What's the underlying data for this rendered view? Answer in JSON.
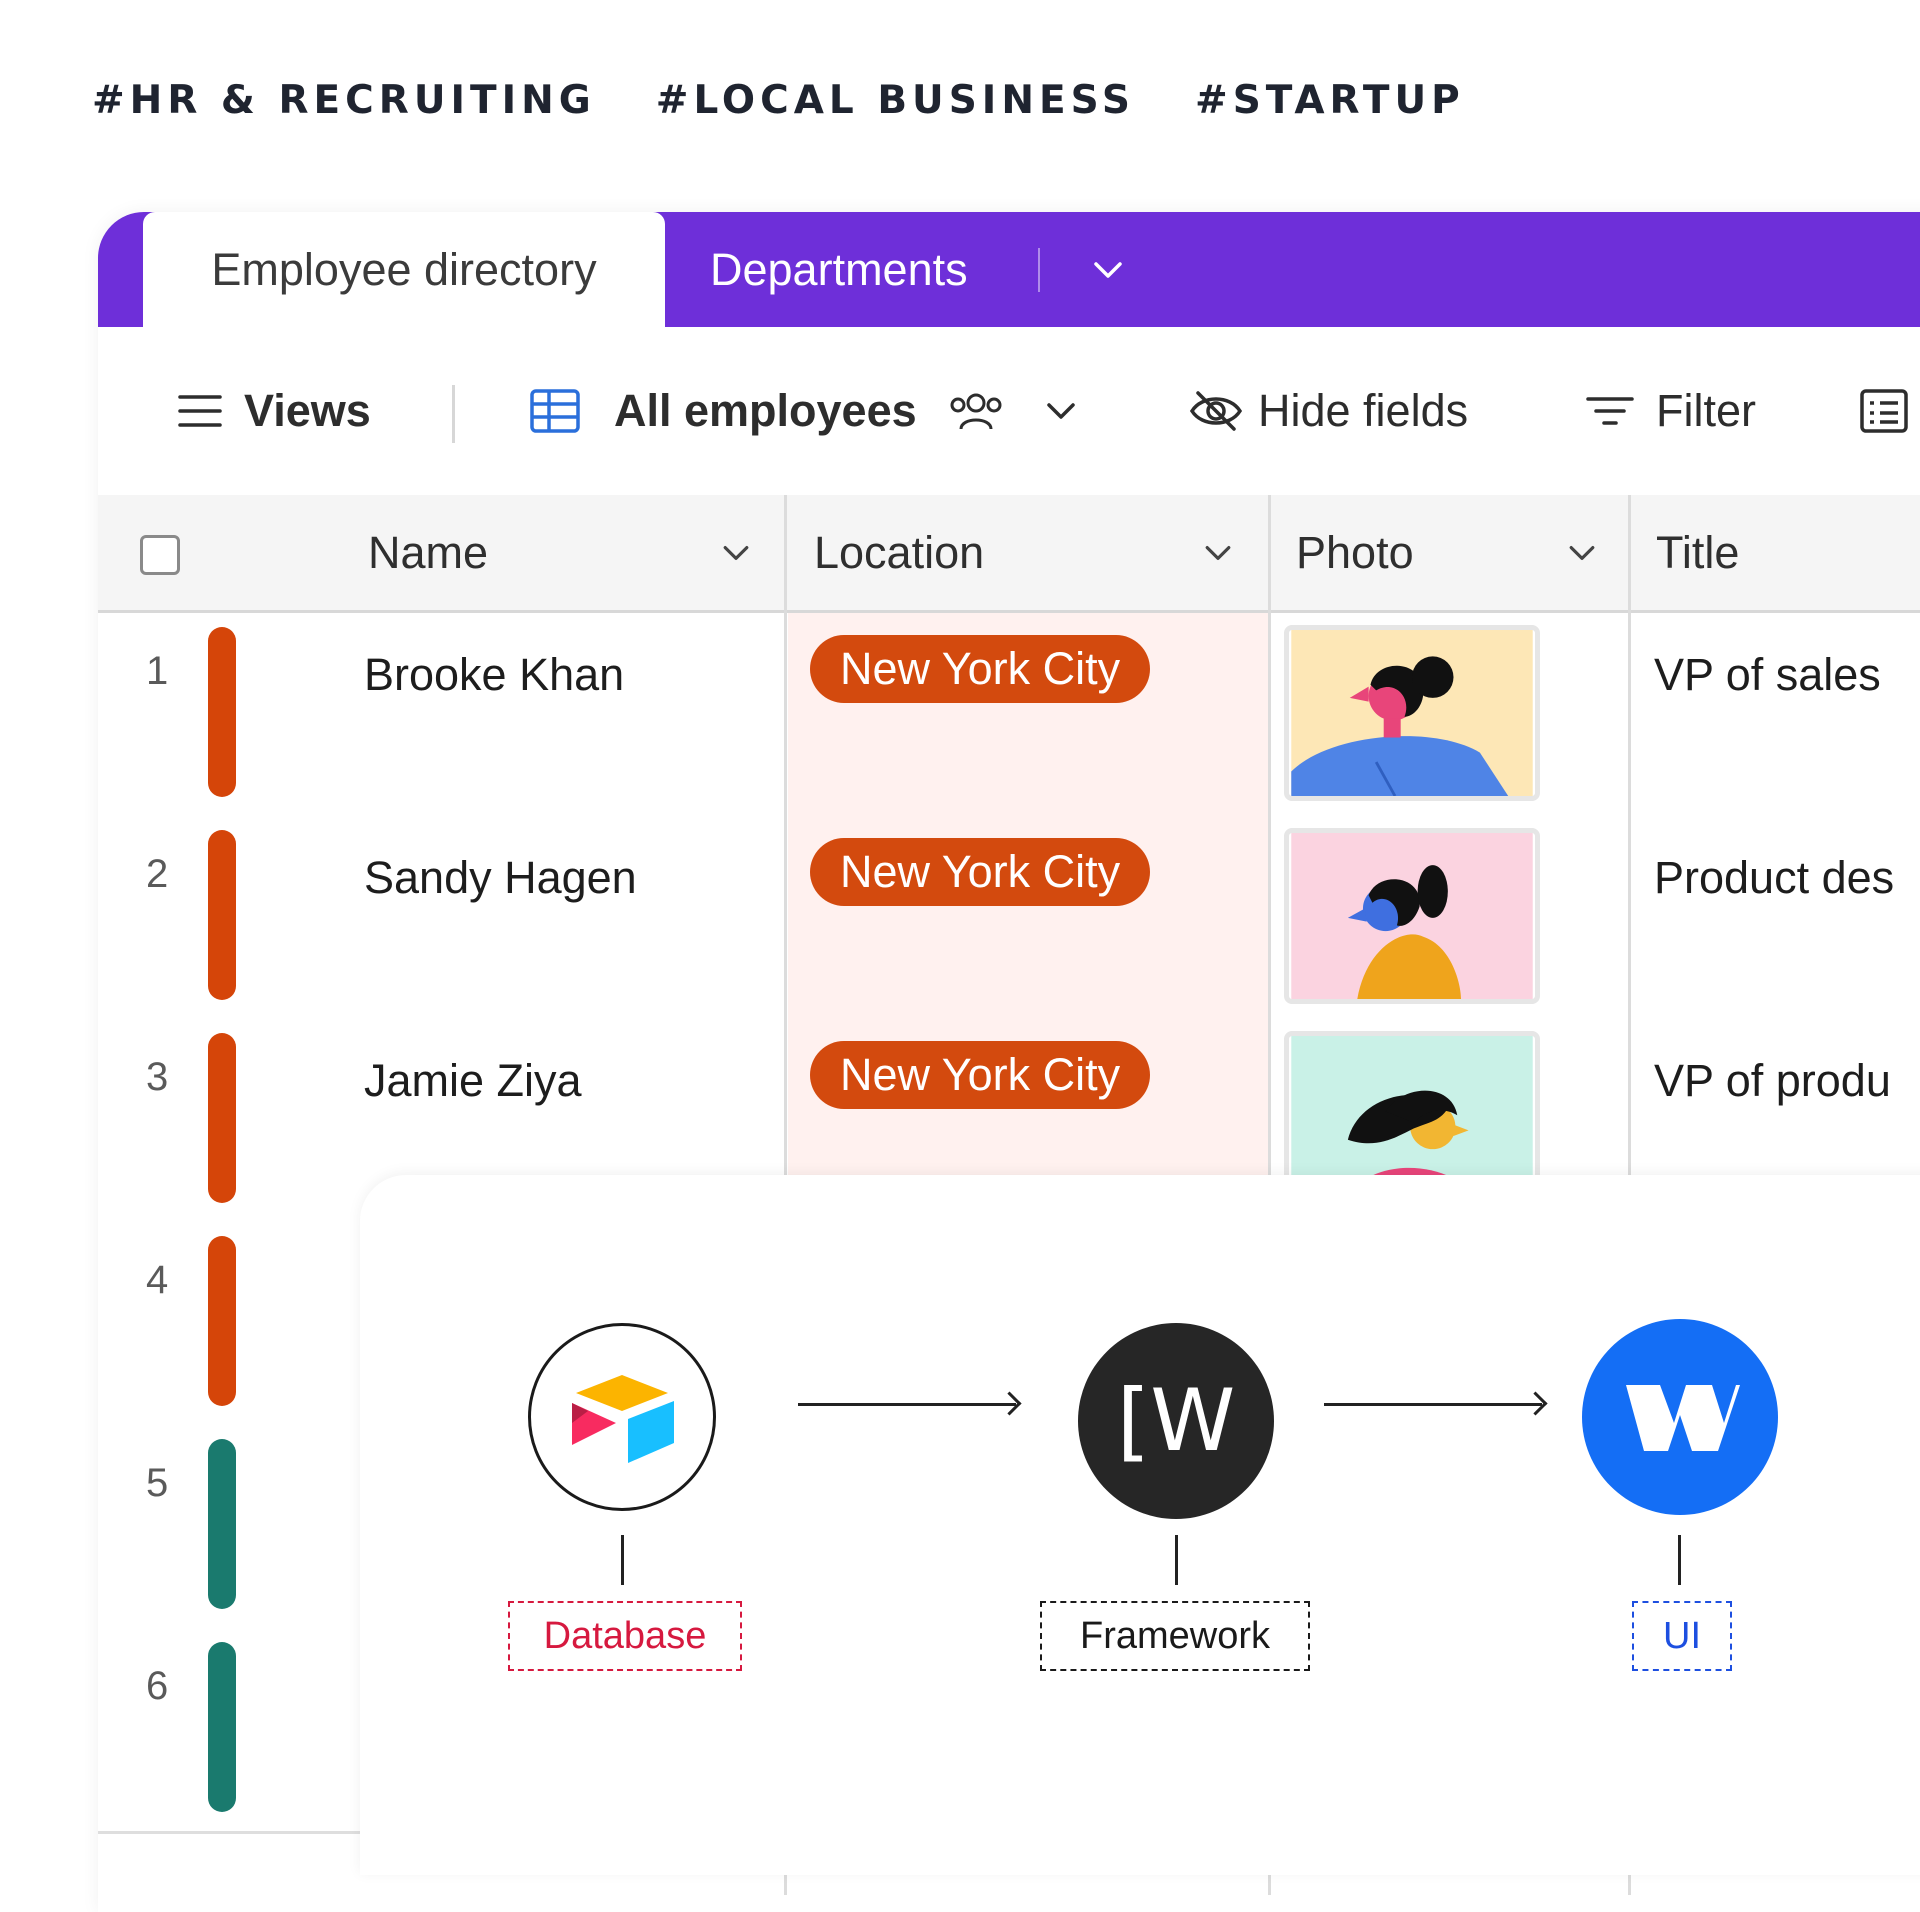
{
  "tags": [
    "#HR & RECRUITING",
    "#LOCAL BUSINESS",
    "#STARTUP"
  ],
  "tabs": {
    "active": "Employee directory",
    "other": "Departments"
  },
  "toolbar": {
    "views": "Views",
    "view_name": "All employees",
    "hide_fields": "Hide fields",
    "filter": "Filter"
  },
  "columns": [
    "Name",
    "Location",
    "Photo",
    "Title"
  ],
  "rows": [
    {
      "num": "1",
      "name": "Brooke Khan",
      "location": "New York City",
      "title": "VP of sales",
      "bar_color": "#d54509"
    },
    {
      "num": "2",
      "name": "Sandy Hagen",
      "location": "New York City",
      "title": "Product des",
      "bar_color": "#d54509"
    },
    {
      "num": "3",
      "name": "Jamie Ziya",
      "location": "New York City",
      "title": "VP of produ",
      "bar_color": "#d54509"
    },
    {
      "num": "4",
      "bar_color": "#d54509"
    },
    {
      "num": "5",
      "bar_color": "#1a7a6e"
    },
    {
      "num": "6",
      "bar_color": "#1a7a6e"
    }
  ],
  "diagram": {
    "database_label": "Database",
    "framework_label": "Framework",
    "framework_glyph": "[W",
    "ui_label": "UI",
    "colors": {
      "database": "#d6193f",
      "framework": "#1a1a1a",
      "ui": "#1d4fe0",
      "webflow_blue": "#146ef5"
    }
  },
  "colors": {
    "tabbar": "#6e2fd9",
    "pill": "#d34a0e",
    "location_bg": "#fff1ef"
  }
}
